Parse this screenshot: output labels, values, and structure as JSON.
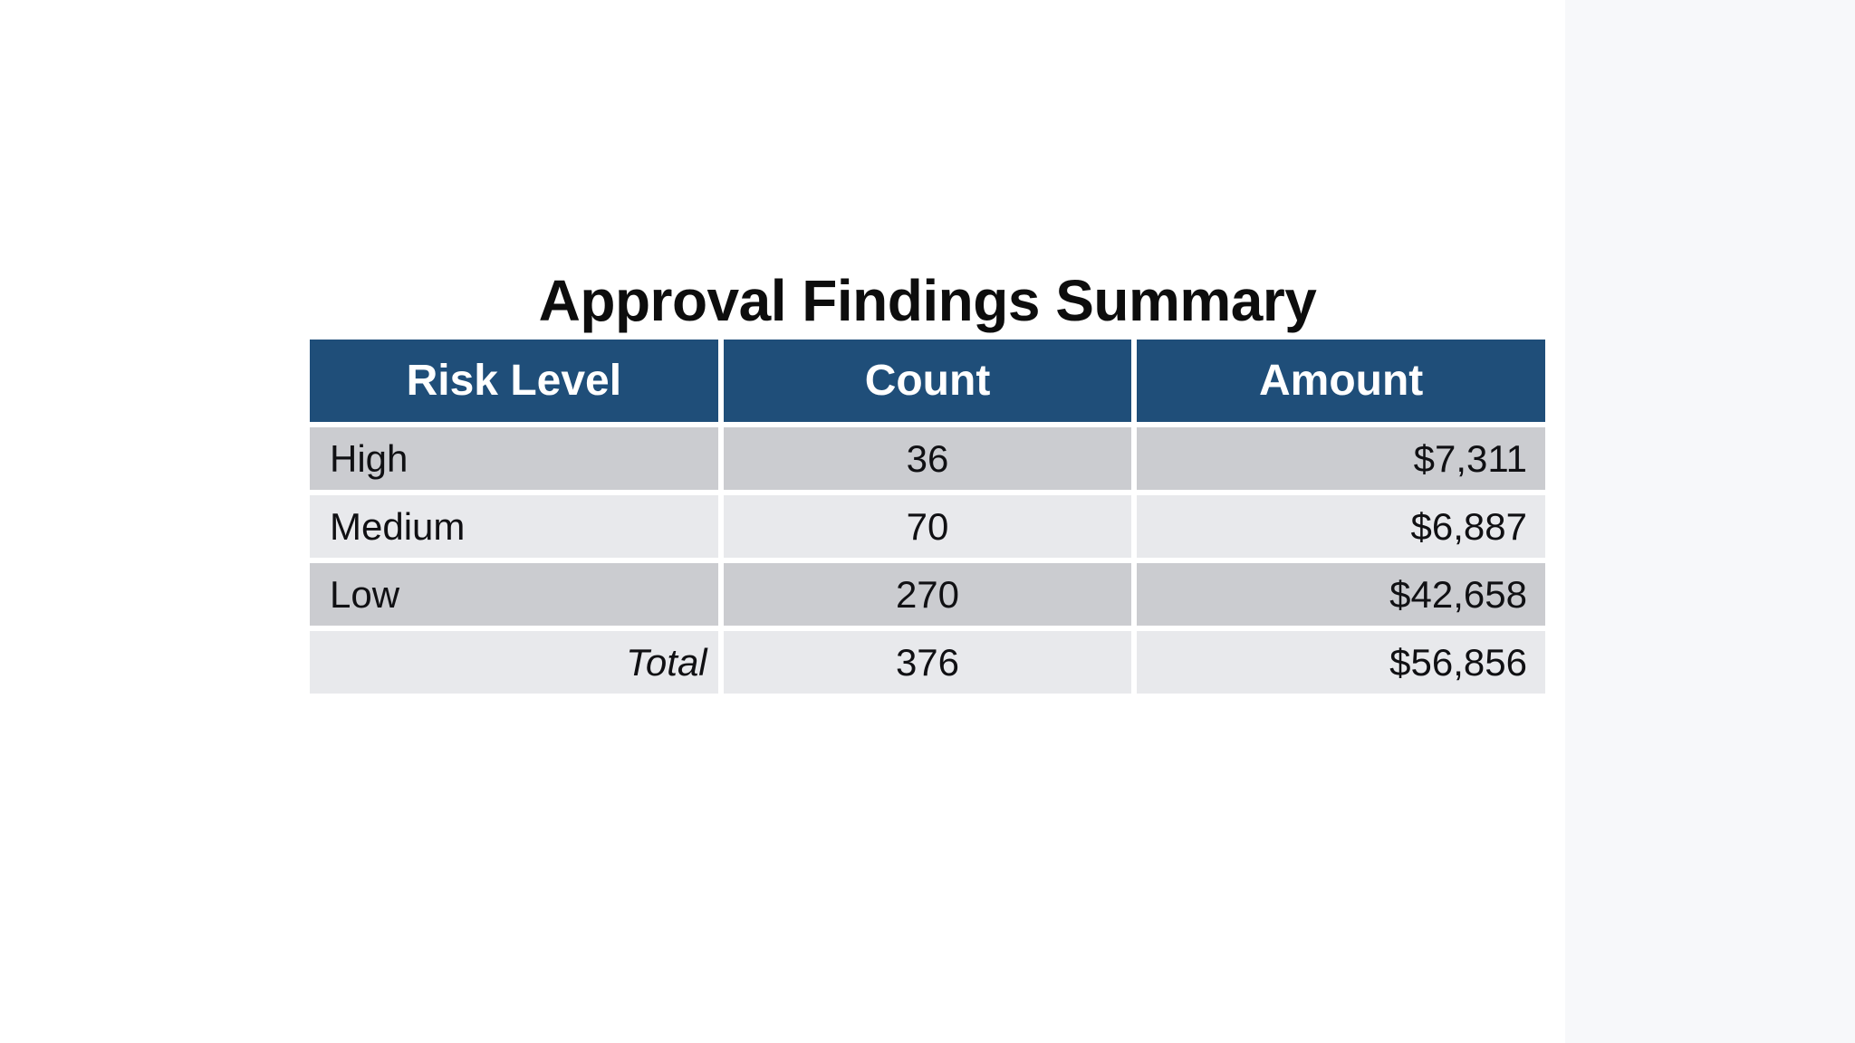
{
  "page": {
    "title": "Approval Findings Summary"
  },
  "table": {
    "headers": [
      "Risk Level",
      "Count",
      "Amount"
    ],
    "rows": [
      {
        "risk_level": "High",
        "count": "36",
        "amount": "$7,311"
      },
      {
        "risk_level": "Medium",
        "count": "70",
        "amount": "$6,887"
      },
      {
        "risk_level": "Low",
        "count": "270",
        "amount": "$42,658"
      }
    ],
    "total": {
      "label": "Total",
      "count": "376",
      "amount": "$56,856"
    }
  },
  "colors": {
    "header_bg": "#1f4e79",
    "header_text": "#ffffff",
    "band_dark": "#cbccd0",
    "band_light": "#e8e9ec",
    "title_text": "#0d0d0d",
    "body_text": "#101013",
    "page_bg": "#ffffff",
    "right_gutter": "#f7f8fa"
  },
  "chart_data": {
    "type": "table",
    "title": "Approval Findings Summary",
    "columns": [
      "Risk Level",
      "Count",
      "Amount"
    ],
    "rows": [
      [
        "High",
        36,
        7311
      ],
      [
        "Medium",
        70,
        6887
      ],
      [
        "Low",
        270,
        42658
      ],
      [
        "Total",
        376,
        56856
      ]
    ]
  }
}
